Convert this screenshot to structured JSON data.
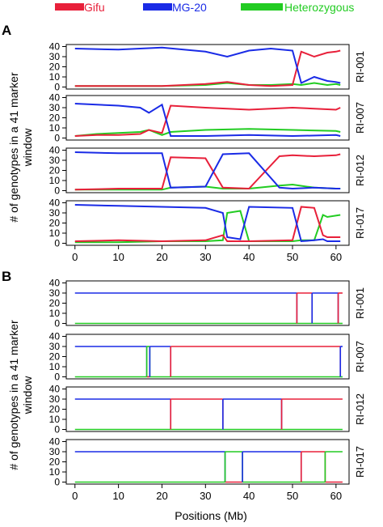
{
  "legend": [
    {
      "label": "Gifu",
      "color": "#e8203a"
    },
    {
      "label": "MG-20",
      "color": "#1a2be6"
    },
    {
      "label": "Heterozygous",
      "color": "#22cc22"
    }
  ],
  "panels": {
    "A": "A",
    "B": "B"
  },
  "ylabel": "# of genotypes in a 41 marker window",
  "ylabel_lines": [
    "# of genotypes in a 41 marker",
    "window"
  ],
  "xlabel": "Positions (Mb)",
  "chart_data": [
    {
      "type": "line",
      "panel": "A",
      "lines": [
        "RI-001",
        "RI-007",
        "RI-012",
        "RI-017"
      ],
      "xlabel": "",
      "ylabel": "# of genotypes in a 41 marker window",
      "xlim": [
        -2,
        63
      ],
      "ylim": [
        -2,
        42
      ],
      "xticks": [
        0,
        10,
        20,
        30,
        40,
        50,
        60
      ],
      "yticks": [
        0,
        10,
        20,
        30,
        40
      ],
      "series_names": [
        "Gifu",
        "MG-20",
        "Heterozygous"
      ],
      "rows": [
        {
          "name": "RI-001",
          "x": [
            0,
            10,
            20,
            30,
            35,
            40,
            45,
            50,
            52,
            55,
            58,
            60,
            61
          ],
          "Gifu": [
            1,
            1,
            1,
            3,
            5,
            2,
            1,
            2,
            35,
            30,
            34,
            35,
            36
          ],
          "MG-20": [
            38,
            37,
            39,
            35,
            30,
            36,
            38,
            36,
            4,
            10,
            6,
            5,
            4
          ],
          "Heterozygous": [
            1,
            1,
            1,
            2,
            4,
            2,
            2,
            3,
            2,
            4,
            2,
            3,
            2
          ]
        },
        {
          "name": "RI-007",
          "x": [
            0,
            5,
            10,
            15,
            17,
            20,
            22,
            30,
            40,
            50,
            60,
            61
          ],
          "Gifu": [
            2,
            3,
            3,
            4,
            8,
            5,
            32,
            30,
            28,
            30,
            28,
            30
          ],
          "MG-20": [
            34,
            33,
            32,
            30,
            25,
            33,
            2,
            2,
            3,
            2,
            3,
            2
          ],
          "Heterozygous": [
            2,
            4,
            5,
            6,
            8,
            3,
            6,
            8,
            9,
            8,
            7,
            6
          ]
        },
        {
          "name": "RI-012",
          "x": [
            0,
            10,
            20,
            22,
            30,
            34,
            40,
            47,
            50,
            55,
            60,
            61
          ],
          "Gifu": [
            1,
            2,
            2,
            33,
            32,
            3,
            2,
            34,
            35,
            34,
            35,
            36
          ],
          "MG-20": [
            38,
            37,
            37,
            3,
            4,
            36,
            37,
            3,
            2,
            3,
            2,
            2
          ],
          "Heterozygous": [
            1,
            1,
            1,
            3,
            4,
            2,
            2,
            5,
            6,
            3,
            2,
            2
          ]
        },
        {
          "name": "RI-017",
          "x": [
            0,
            10,
            20,
            30,
            34,
            35,
            38,
            40,
            50,
            52,
            55,
            57,
            58,
            61
          ],
          "Gifu": [
            2,
            3,
            2,
            3,
            8,
            2,
            2,
            2,
            3,
            36,
            35,
            8,
            6,
            6
          ],
          "MG-20": [
            38,
            37,
            36,
            35,
            30,
            6,
            4,
            36,
            35,
            2,
            3,
            4,
            2,
            2
          ],
          "Heterozygous": [
            1,
            1,
            2,
            2,
            3,
            30,
            32,
            2,
            2,
            3,
            3,
            28,
            26,
            28
          ]
        }
      ]
    },
    {
      "type": "line",
      "panel": "B",
      "lines": [
        "RI-001",
        "RI-007",
        "RI-012",
        "RI-017"
      ],
      "xlabel": "Positions (Mb)",
      "ylabel": "# of genotypes in a 41 marker window",
      "xlim": [
        -2,
        63
      ],
      "ylim": [
        -2,
        42
      ],
      "xticks": [
        0,
        10,
        20,
        30,
        40,
        50,
        60
      ],
      "yticks": [
        0,
        10,
        20,
        30,
        40
      ],
      "series_names": [
        "Gifu",
        "MG-20",
        "Heterozygous"
      ],
      "rows": [
        {
          "name": "RI-001",
          "segments": [
            {
              "from": 0,
              "to": 51,
              "genotype": "MG-20"
            },
            {
              "from": 51,
              "to": 54.5,
              "genotype": "Gifu"
            },
            {
              "from": 54.5,
              "to": 60.5,
              "genotype": "MG-20"
            },
            {
              "from": 60.5,
              "to": 61.5,
              "genotype": "Gifu"
            }
          ]
        },
        {
          "name": "RI-007",
          "segments": [
            {
              "from": 0,
              "to": 16.5,
              "genotype": "MG-20"
            },
            {
              "from": 16.5,
              "to": 17.2,
              "genotype": "Heterozygous"
            },
            {
              "from": 17.2,
              "to": 22,
              "genotype": "MG-20"
            },
            {
              "from": 22,
              "to": 61,
              "genotype": "Gifu"
            },
            {
              "from": 61,
              "to": 61.5,
              "genotype": "MG-20"
            }
          ]
        },
        {
          "name": "RI-012",
          "segments": [
            {
              "from": 0,
              "to": 22,
              "genotype": "MG-20"
            },
            {
              "from": 22,
              "to": 34,
              "genotype": "Gifu"
            },
            {
              "from": 34,
              "to": 47.5,
              "genotype": "MG-20"
            },
            {
              "from": 47.5,
              "to": 61.5,
              "genotype": "Gifu"
            }
          ]
        },
        {
          "name": "RI-017",
          "segments": [
            {
              "from": 0,
              "to": 34.5,
              "genotype": "MG-20"
            },
            {
              "from": 34.5,
              "to": 38.5,
              "genotype": "Heterozygous"
            },
            {
              "from": 38.5,
              "to": 52,
              "genotype": "MG-20"
            },
            {
              "from": 52,
              "to": 57.5,
              "genotype": "Gifu"
            },
            {
              "from": 57.5,
              "to": 61.5,
              "genotype": "Heterozygous"
            }
          ]
        }
      ]
    }
  ]
}
